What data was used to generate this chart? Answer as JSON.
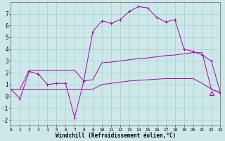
{
  "bg_color": "#cce8e8",
  "grid_color": "#aacccc",
  "line_color": "#aa00aa",
  "xlabel": "Windchill (Refroidissement éolien,°C)",
  "xlim": [
    0,
    23
  ],
  "ylim": [
    -2.5,
    8.0
  ],
  "yticks": [
    -2,
    -1,
    0,
    1,
    2,
    3,
    4,
    5,
    6,
    7
  ],
  "xticks": [
    0,
    1,
    2,
    3,
    4,
    5,
    6,
    7,
    8,
    9,
    10,
    11,
    12,
    13,
    14,
    15,
    16,
    17,
    18,
    19,
    20,
    21,
    22,
    23
  ],
  "curve1_x": [
    0,
    1,
    2,
    3,
    4,
    5,
    6,
    7,
    8,
    9,
    10,
    11,
    12,
    13,
    14,
    15,
    16,
    17,
    18,
    19,
    20,
    21,
    22,
    23
  ],
  "curve1_y": [
    0.6,
    -0.2,
    2.1,
    1.9,
    1.0,
    1.1,
    1.1,
    -1.8,
    1.3,
    5.5,
    6.4,
    6.2,
    6.5,
    7.2,
    7.6,
    7.5,
    6.7,
    6.3,
    6.5,
    4.0,
    3.8,
    3.5,
    3.0,
    0.3
  ],
  "curve2_x": [
    0,
    1,
    2,
    3,
    4,
    5,
    6,
    7,
    8,
    9,
    10,
    11,
    12,
    13,
    14,
    15,
    16,
    17,
    18,
    19,
    20,
    21,
    22,
    23
  ],
  "curve2_y": [
    0.6,
    0.6,
    2.2,
    2.2,
    2.2,
    2.2,
    2.2,
    2.2,
    1.3,
    1.4,
    2.85,
    2.9,
    3.0,
    3.1,
    3.2,
    3.25,
    3.35,
    3.45,
    3.5,
    3.6,
    3.7,
    3.7,
    0.6,
    0.3
  ],
  "curve3_x": [
    0,
    1,
    2,
    3,
    4,
    5,
    6,
    7,
    8,
    9,
    10,
    11,
    12,
    13,
    14,
    15,
    16,
    17,
    18,
    19,
    20,
    21,
    22,
    23
  ],
  "curve3_y": [
    0.6,
    0.6,
    0.6,
    0.6,
    0.6,
    0.6,
    0.6,
    0.6,
    0.6,
    0.6,
    1.0,
    1.1,
    1.2,
    1.3,
    1.35,
    1.4,
    1.45,
    1.5,
    1.5,
    1.5,
    1.5,
    1.1,
    0.6,
    0.3
  ],
  "triangle_x": 22,
  "triangle_y": 0.3
}
